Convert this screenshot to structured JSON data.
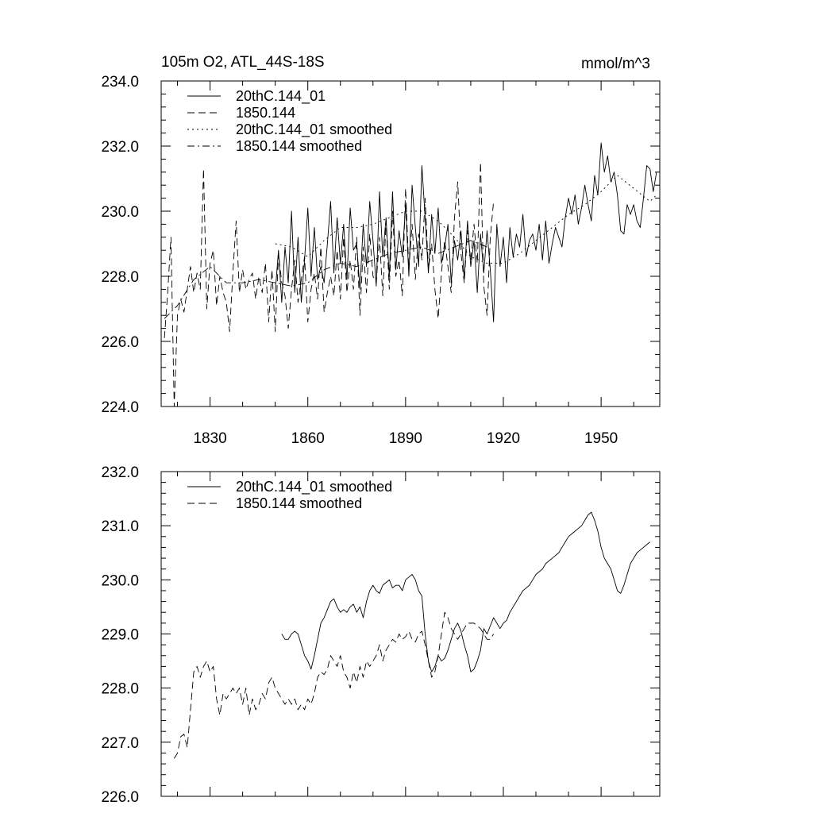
{
  "chart_data": [
    {
      "type": "line",
      "title": "105m O2, ATL_44S-18S",
      "units": "mmol/m^3",
      "xlim": [
        1815,
        1968
      ],
      "ylim": [
        224,
        234
      ],
      "x_ticks": [
        1830,
        1860,
        1890,
        1920,
        1950
      ],
      "x_tick_labels": [
        "1830",
        "1860",
        "1890",
        "1920",
        "1950"
      ],
      "y_ticks": [
        224,
        226,
        228,
        230,
        232,
        234
      ],
      "y_tick_labels": [
        "224.0",
        "226.0",
        "228.0",
        "230.0",
        "232.0",
        "234.0"
      ],
      "legend_position": "top-left",
      "series": [
        {
          "name": "20thC.144_01",
          "style": "solid",
          "x": [
            1850,
            1851,
            1852,
            1853,
            1854,
            1855,
            1856,
            1857,
            1858,
            1859,
            1860,
            1861,
            1862,
            1863,
            1864,
            1865,
            1866,
            1867,
            1868,
            1869,
            1870,
            1871,
            1872,
            1873,
            1874,
            1875,
            1876,
            1877,
            1878,
            1879,
            1880,
            1881,
            1882,
            1883,
            1884,
            1885,
            1886,
            1887,
            1888,
            1889,
            1890,
            1891,
            1892,
            1893,
            1894,
            1895,
            1896,
            1897,
            1898,
            1899,
            1900,
            1901,
            1902,
            1903,
            1904,
            1905,
            1906,
            1907,
            1908,
            1909,
            1910,
            1911,
            1912,
            1913,
            1914,
            1915,
            1916,
            1917,
            1918,
            1919,
            1920,
            1921,
            1922,
            1923,
            1924,
            1925,
            1926,
            1927,
            1928,
            1929,
            1930,
            1931,
            1932,
            1933,
            1934,
            1935,
            1936,
            1937,
            1938,
            1939,
            1940,
            1941,
            1942,
            1943,
            1944,
            1945,
            1946,
            1947,
            1948,
            1949,
            1950,
            1951,
            1952,
            1953,
            1954,
            1955,
            1956,
            1957,
            1958,
            1959,
            1960,
            1961,
            1962,
            1963,
            1964,
            1965,
            1966,
            1967
          ],
          "values": [
            227.5,
            228.8,
            227.2,
            228.9,
            227.8,
            230.0,
            227.5,
            229.2,
            227.2,
            228.5,
            230.1,
            228.0,
            229.5,
            227.9,
            228.3,
            227.8,
            229.0,
            230.3,
            228.1,
            229.8,
            228.4,
            229.6,
            227.9,
            230.1,
            228.8,
            229.0,
            227.6,
            229.6,
            228.3,
            230.3,
            229.1,
            227.7,
            230.6,
            228.6,
            229.8,
            228.0,
            230.6,
            228.2,
            229.4,
            228.6,
            230.2,
            228.0,
            230.8,
            229.5,
            228.3,
            231.4,
            229.8,
            228.1,
            229.9,
            228.7,
            230.1,
            228.4,
            228.9,
            229.6,
            227.8,
            229.1,
            228.5,
            229.4,
            227.9,
            229.7,
            228.3,
            229.1,
            227.5,
            229.3,
            228.1,
            229.4,
            228.2,
            226.6,
            229.6,
            228.3,
            229.2,
            227.8,
            229.5,
            228.6,
            229.3,
            228.9,
            229.9,
            228.6,
            229.1,
            229.3,
            228.8,
            229.6,
            228.5,
            229.7,
            228.4,
            229.0,
            229.5,
            229.2,
            228.9,
            229.8,
            230.4,
            229.9,
            230.5,
            229.6,
            230.1,
            230.8,
            230.2,
            229.7,
            231.1,
            230.5,
            232.1,
            231.2,
            231.7,
            230.9,
            231.2,
            230.5,
            229.4,
            229.3,
            230.2,
            229.9,
            230.2,
            229.7,
            229.5,
            230.4,
            231.4,
            231.3,
            230.6,
            231.2
          ]
        },
        {
          "name": "1850.144",
          "style": "dashed",
          "x": [
            1816,
            1817,
            1818,
            1819,
            1820,
            1821,
            1822,
            1823,
            1824,
            1825,
            1826,
            1827,
            1828,
            1829,
            1830,
            1831,
            1832,
            1833,
            1834,
            1835,
            1836,
            1837,
            1838,
            1839,
            1840,
            1841,
            1842,
            1843,
            1844,
            1845,
            1846,
            1847,
            1848,
            1849,
            1850,
            1851,
            1852,
            1853,
            1854,
            1855,
            1856,
            1857,
            1858,
            1859,
            1860,
            1861,
            1862,
            1863,
            1864,
            1865,
            1866,
            1867,
            1868,
            1869,
            1870,
            1871,
            1872,
            1873,
            1874,
            1875,
            1876,
            1877,
            1878,
            1879,
            1880,
            1881,
            1882,
            1883,
            1884,
            1885,
            1886,
            1887,
            1888,
            1889,
            1890,
            1891,
            1892,
            1893,
            1894,
            1895,
            1896,
            1897,
            1898,
            1899,
            1900,
            1901,
            1902,
            1903,
            1904,
            1905,
            1906,
            1907,
            1908,
            1909,
            1910,
            1911,
            1912,
            1913,
            1914,
            1915,
            1916,
            1917
          ],
          "values": [
            226.1,
            227.5,
            229.2,
            224.0,
            226.8,
            227.3,
            226.9,
            227.6,
            228.3,
            227.5,
            228.1,
            227.6,
            231.3,
            227.0,
            228.4,
            228.8,
            227.1,
            228.0,
            227.5,
            227.2,
            226.3,
            228.1,
            229.7,
            227.5,
            228.2,
            227.6,
            227.9,
            228.1,
            227.3,
            228.0,
            227.5,
            228.4,
            226.6,
            228.2,
            226.3,
            228.7,
            227.8,
            227.4,
            226.4,
            227.6,
            228.5,
            227.2,
            227.9,
            228.6,
            226.6,
            227.6,
            228.1,
            227.3,
            228.9,
            226.9,
            227.5,
            228.0,
            227.4,
            228.8,
            227.3,
            229.2,
            227.5,
            228.5,
            227.6,
            229.2,
            226.8,
            228.9,
            227.5,
            229.3,
            228.0,
            227.8,
            229.2,
            227.4,
            229.7,
            227.6,
            230.0,
            228.0,
            228.5,
            227.4,
            230.7,
            228.2,
            229.6,
            227.9,
            229.3,
            228.5,
            230.4,
            228.2,
            229.0,
            227.6,
            226.7,
            228.1,
            229.1,
            228.3,
            227.5,
            229.8,
            230.9,
            228.7,
            227.8,
            229.4,
            228.5,
            229.6,
            228.4,
            231.5,
            227.7,
            226.8,
            229.2,
            230.3
          ]
        },
        {
          "name": "20thC.144_01 smoothed",
          "style": "dotted",
          "x": [
            1850,
            1855,
            1860,
            1865,
            1870,
            1875,
            1880,
            1885,
            1890,
            1895,
            1900,
            1905,
            1910,
            1915,
            1920,
            1925,
            1930,
            1935,
            1940,
            1945,
            1950,
            1955,
            1960,
            1965,
            1967
          ],
          "values": [
            229.0,
            228.9,
            228.6,
            229.1,
            229.5,
            229.5,
            229.6,
            229.8,
            230.0,
            230.0,
            229.7,
            229.2,
            228.6,
            228.4,
            228.4,
            228.7,
            229.1,
            229.5,
            229.9,
            230.2,
            230.6,
            231.1,
            230.7,
            230.3,
            230.5
          ]
        },
        {
          "name": "1850.144 smoothed",
          "style": "dashdot",
          "x": [
            1816,
            1820,
            1825,
            1830,
            1835,
            1840,
            1845,
            1850,
            1855,
            1860,
            1865,
            1870,
            1875,
            1880,
            1885,
            1890,
            1895,
            1900,
            1905,
            1910,
            1915
          ],
          "values": [
            226.7,
            227.1,
            227.9,
            228.3,
            227.8,
            227.8,
            227.9,
            227.8,
            227.7,
            227.8,
            228.2,
            228.4,
            228.3,
            228.5,
            228.7,
            228.8,
            228.9,
            228.7,
            228.9,
            229.1,
            228.9
          ]
        }
      ]
    },
    {
      "type": "line",
      "title": "",
      "xlim": [
        1815,
        1968
      ],
      "ylim": [
        226,
        232
      ],
      "x_ticks": [
        1830,
        1860,
        1890,
        1920,
        1950
      ],
      "y_ticks": [
        226,
        227,
        228,
        229,
        230,
        231,
        232
      ],
      "y_tick_labels": [
        "226.0",
        "227.0",
        "228.0",
        "229.0",
        "230.0",
        "231.0",
        "232.0"
      ],
      "legend_position": "top-left",
      "series": [
        {
          "name": "20thC.144_01 smoothed",
          "style": "solid",
          "x": [
            1852,
            1853,
            1854,
            1855,
            1856,
            1857,
            1858,
            1859,
            1860,
            1861,
            1862,
            1863,
            1864,
            1865,
            1866,
            1867,
            1868,
            1869,
            1870,
            1871,
            1872,
            1873,
            1874,
            1875,
            1876,
            1877,
            1878,
            1879,
            1880,
            1881,
            1882,
            1883,
            1884,
            1885,
            1886,
            1887,
            1888,
            1889,
            1890,
            1891,
            1892,
            1893,
            1894,
            1895,
            1896,
            1897,
            1898,
            1899,
            1900,
            1901,
            1902,
            1903,
            1904,
            1905,
            1906,
            1907,
            1908,
            1909,
            1910,
            1911,
            1912,
            1913,
            1914,
            1915,
            1916,
            1917,
            1918,
            1919,
            1920,
            1921,
            1922,
            1923,
            1924,
            1925,
            1926,
            1927,
            1928,
            1929,
            1930,
            1931,
            1932,
            1933,
            1934,
            1935,
            1936,
            1937,
            1938,
            1939,
            1940,
            1941,
            1942,
            1943,
            1944,
            1945,
            1946,
            1947,
            1948,
            1949,
            1950,
            1951,
            1952,
            1953,
            1954,
            1955,
            1956,
            1957,
            1958,
            1959,
            1960,
            1961,
            1962,
            1963,
            1964,
            1965
          ],
          "values": [
            229.0,
            228.9,
            228.9,
            229.0,
            229.05,
            229.0,
            228.8,
            228.6,
            228.5,
            228.35,
            228.6,
            228.9,
            229.2,
            229.3,
            229.45,
            229.6,
            229.65,
            229.5,
            229.4,
            229.45,
            229.4,
            229.5,
            229.55,
            229.4,
            229.5,
            229.3,
            229.6,
            229.8,
            229.9,
            229.8,
            229.75,
            229.9,
            229.95,
            230.0,
            229.85,
            229.9,
            229.9,
            229.8,
            230.0,
            230.05,
            230.1,
            230.0,
            229.8,
            229.7,
            229.0,
            228.5,
            228.3,
            228.4,
            228.6,
            228.5,
            228.55,
            228.7,
            228.9,
            229.1,
            229.2,
            229.05,
            228.8,
            228.6,
            228.3,
            228.35,
            228.5,
            228.7,
            229.1,
            229.0,
            229.15,
            229.3,
            229.2,
            229.1,
            229.2,
            229.25,
            229.4,
            229.5,
            229.6,
            229.7,
            229.8,
            229.85,
            229.9,
            230.0,
            230.1,
            230.15,
            230.2,
            230.3,
            230.35,
            230.4,
            230.45,
            230.5,
            230.6,
            230.7,
            230.8,
            230.85,
            230.9,
            230.95,
            231.0,
            231.1,
            231.2,
            231.25,
            231.1,
            230.9,
            230.6,
            230.4,
            230.3,
            230.2,
            230.0,
            229.8,
            229.75,
            229.9,
            230.1,
            230.3,
            230.4,
            230.5,
            230.55,
            230.6,
            230.65,
            230.7
          ]
        },
        {
          "name": "1850.144 smoothed",
          "style": "dashed",
          "x": [
            1819,
            1820,
            1821,
            1822,
            1823,
            1824,
            1825,
            1826,
            1827,
            1828,
            1829,
            1830,
            1831,
            1832,
            1833,
            1834,
            1835,
            1836,
            1837,
            1838,
            1839,
            1840,
            1841,
            1842,
            1843,
            1844,
            1845,
            1846,
            1847,
            1848,
            1849,
            1850,
            1851,
            1852,
            1853,
            1854,
            1855,
            1856,
            1857,
            1858,
            1859,
            1860,
            1861,
            1862,
            1863,
            1864,
            1865,
            1866,
            1867,
            1868,
            1869,
            1870,
            1871,
            1872,
            1873,
            1874,
            1875,
            1876,
            1877,
            1878,
            1879,
            1880,
            1881,
            1882,
            1883,
            1884,
            1885,
            1886,
            1887,
            1888,
            1889,
            1890,
            1891,
            1892,
            1893,
            1894,
            1895,
            1896,
            1897,
            1898,
            1899,
            1900,
            1901,
            1902,
            1903,
            1904,
            1905,
            1906,
            1907,
            1908,
            1909,
            1910,
            1911,
            1912,
            1913,
            1914,
            1915,
            1916,
            1917
          ],
          "values": [
            226.7,
            226.8,
            227.1,
            227.15,
            226.9,
            227.6,
            228.3,
            228.4,
            228.2,
            228.4,
            228.5,
            228.3,
            228.4,
            227.8,
            227.5,
            227.9,
            227.8,
            227.9,
            228.0,
            227.9,
            228.0,
            227.7,
            228.0,
            227.5,
            227.8,
            227.6,
            227.7,
            227.9,
            227.8,
            228.1,
            228.2,
            228.0,
            227.9,
            227.8,
            227.7,
            227.8,
            227.7,
            227.8,
            227.6,
            227.7,
            227.6,
            227.8,
            227.7,
            227.9,
            228.2,
            228.3,
            228.25,
            228.35,
            228.6,
            228.5,
            228.4,
            228.6,
            228.3,
            228.2,
            228.0,
            228.3,
            228.1,
            228.4,
            228.2,
            228.5,
            228.4,
            228.5,
            228.6,
            228.8,
            228.5,
            228.7,
            228.8,
            228.9,
            228.85,
            229.0,
            228.9,
            228.95,
            229.05,
            228.9,
            228.85,
            229.0,
            229.05,
            228.8,
            228.5,
            228.2,
            228.3,
            228.6,
            229.0,
            229.4,
            229.3,
            229.1,
            229.0,
            228.9,
            229.0,
            229.1,
            229.2,
            229.2,
            229.2,
            229.15,
            229.1,
            229.0,
            228.9,
            228.9,
            229.0
          ]
        }
      ]
    }
  ]
}
